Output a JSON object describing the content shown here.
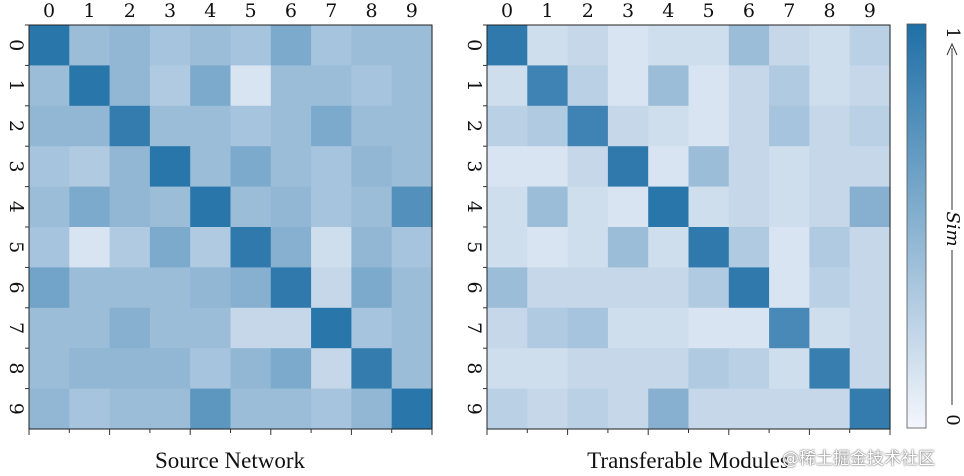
{
  "chart_data": [
    {
      "type": "heatmap",
      "title": "Source Network",
      "x_categories": [
        "0",
        "1",
        "2",
        "3",
        "4",
        "5",
        "6",
        "7",
        "8",
        "9"
      ],
      "y_categories": [
        "0",
        "1",
        "2",
        "3",
        "4",
        "5",
        "6",
        "7",
        "8",
        "9"
      ],
      "values": [
        [
          0.95,
          0.4,
          0.45,
          0.35,
          0.4,
          0.35,
          0.55,
          0.35,
          0.4,
          0.4
        ],
        [
          0.4,
          0.95,
          0.45,
          0.3,
          0.55,
          0.1,
          0.4,
          0.4,
          0.35,
          0.4
        ],
        [
          0.45,
          0.45,
          0.9,
          0.4,
          0.4,
          0.35,
          0.4,
          0.55,
          0.4,
          0.4
        ],
        [
          0.35,
          0.3,
          0.45,
          0.95,
          0.4,
          0.55,
          0.4,
          0.35,
          0.45,
          0.4
        ],
        [
          0.4,
          0.55,
          0.45,
          0.4,
          0.95,
          0.4,
          0.45,
          0.35,
          0.4,
          0.75
        ],
        [
          0.35,
          0.1,
          0.3,
          0.55,
          0.3,
          0.92,
          0.5,
          0.15,
          0.45,
          0.35
        ],
        [
          0.6,
          0.4,
          0.4,
          0.4,
          0.45,
          0.5,
          0.92,
          0.2,
          0.55,
          0.4
        ],
        [
          0.4,
          0.4,
          0.5,
          0.4,
          0.4,
          0.2,
          0.2,
          0.95,
          0.35,
          0.4
        ],
        [
          0.4,
          0.45,
          0.45,
          0.45,
          0.35,
          0.45,
          0.55,
          0.2,
          0.9,
          0.4
        ],
        [
          0.45,
          0.35,
          0.4,
          0.4,
          0.7,
          0.4,
          0.4,
          0.35,
          0.45,
          0.95
        ]
      ]
    },
    {
      "type": "heatmap",
      "title": "Transferable Modules",
      "x_categories": [
        "0",
        "1",
        "2",
        "3",
        "4",
        "5",
        "6",
        "7",
        "8",
        "9"
      ],
      "y_categories": [
        "0",
        "1",
        "2",
        "3",
        "4",
        "5",
        "6",
        "7",
        "8",
        "9"
      ],
      "values": [
        [
          0.92,
          0.15,
          0.2,
          0.1,
          0.15,
          0.15,
          0.4,
          0.2,
          0.15,
          0.25
        ],
        [
          0.15,
          0.85,
          0.25,
          0.1,
          0.4,
          0.1,
          0.2,
          0.3,
          0.15,
          0.2
        ],
        [
          0.25,
          0.3,
          0.85,
          0.2,
          0.15,
          0.1,
          0.2,
          0.35,
          0.2,
          0.25
        ],
        [
          0.1,
          0.1,
          0.2,
          0.92,
          0.1,
          0.4,
          0.2,
          0.15,
          0.2,
          0.2
        ],
        [
          0.15,
          0.4,
          0.15,
          0.1,
          0.95,
          0.15,
          0.2,
          0.15,
          0.2,
          0.5
        ],
        [
          0.15,
          0.1,
          0.15,
          0.4,
          0.15,
          0.92,
          0.3,
          0.1,
          0.3,
          0.2
        ],
        [
          0.4,
          0.2,
          0.2,
          0.2,
          0.2,
          0.3,
          0.92,
          0.1,
          0.25,
          0.2
        ],
        [
          0.2,
          0.3,
          0.35,
          0.15,
          0.15,
          0.1,
          0.1,
          0.8,
          0.15,
          0.2
        ],
        [
          0.15,
          0.15,
          0.2,
          0.2,
          0.2,
          0.3,
          0.25,
          0.15,
          0.88,
          0.2
        ],
        [
          0.25,
          0.2,
          0.25,
          0.2,
          0.5,
          0.2,
          0.2,
          0.2,
          0.2,
          0.9
        ]
      ]
    }
  ],
  "colorbar": {
    "title": "Sim",
    "min_label": "0",
    "max_label": "1",
    "range": [
      0,
      1
    ]
  },
  "colors": {
    "low": "#eef1fa",
    "high": "#1f6fa6"
  },
  "watermark": "@稀土掘金技术社区"
}
